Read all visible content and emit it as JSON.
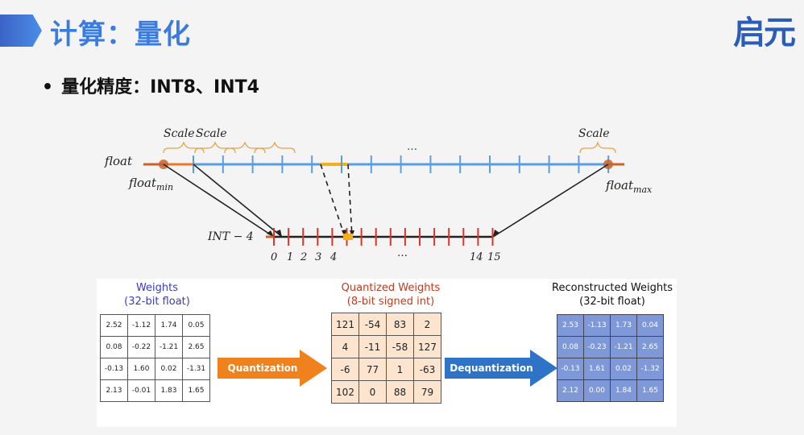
{
  "header": {
    "title": "计算：量化",
    "logo": "启元"
  },
  "bullet": {
    "marker": "•",
    "text": "量化精度：INT8、INT4"
  },
  "diagram": {
    "float_label": "float",
    "float_min_label": "float",
    "float_min_sub": "min",
    "float_max_label": "float",
    "float_max_sub": "max",
    "scale_labels": [
      "Scale",
      "Scale",
      "Scale"
    ],
    "ellipsis_top": "…",
    "int_label": "INT − 4",
    "int_ticks": [
      "0",
      "1",
      "2",
      "3",
      "4",
      "…",
      "14",
      "15"
    ],
    "colors": {
      "float_axis": "#5a9de0",
      "int_axis": "#e0342a",
      "highlight": "#f2b01e",
      "endcap": "#c8642a"
    }
  },
  "weights": {
    "title": "Weights",
    "subtitle": "(32-bit float)",
    "rows": [
      [
        "2.52",
        "-1.12",
        "1.74",
        "0.05"
      ],
      [
        "0.08",
        "-0.22",
        "-1.21",
        "2.65"
      ],
      [
        "-0.13",
        "1.60",
        "0.02",
        "-1.31"
      ],
      [
        "2.13",
        "-0.01",
        "1.83",
        "1.65"
      ]
    ]
  },
  "quantization_arrow": {
    "label": "Quantization",
    "color": "#f0821e"
  },
  "quantized": {
    "title": "Quantized Weights",
    "subtitle": "(8-bit signed int)",
    "rows": [
      [
        "121",
        "-54",
        "83",
        "2"
      ],
      [
        "4",
        "-11",
        "-58",
        "127"
      ],
      [
        "-6",
        "77",
        "1",
        "-63"
      ],
      [
        "102",
        "0",
        "88",
        "79"
      ]
    ]
  },
  "dequantization_arrow": {
    "label": "Dequantization",
    "color": "#2f73c8"
  },
  "reconstructed": {
    "title": "Reconstructed Weights",
    "subtitle": "(32-bit float)",
    "rows": [
      [
        "2.53",
        "-1.13",
        "1.73",
        "0.04"
      ],
      [
        "0.08",
        "-0.23",
        "-1.21",
        "2.65"
      ],
      [
        "-0.13",
        "1.61",
        "0.02",
        "-1.32"
      ],
      [
        "2.12",
        "0.00",
        "1.84",
        "1.65"
      ]
    ]
  }
}
